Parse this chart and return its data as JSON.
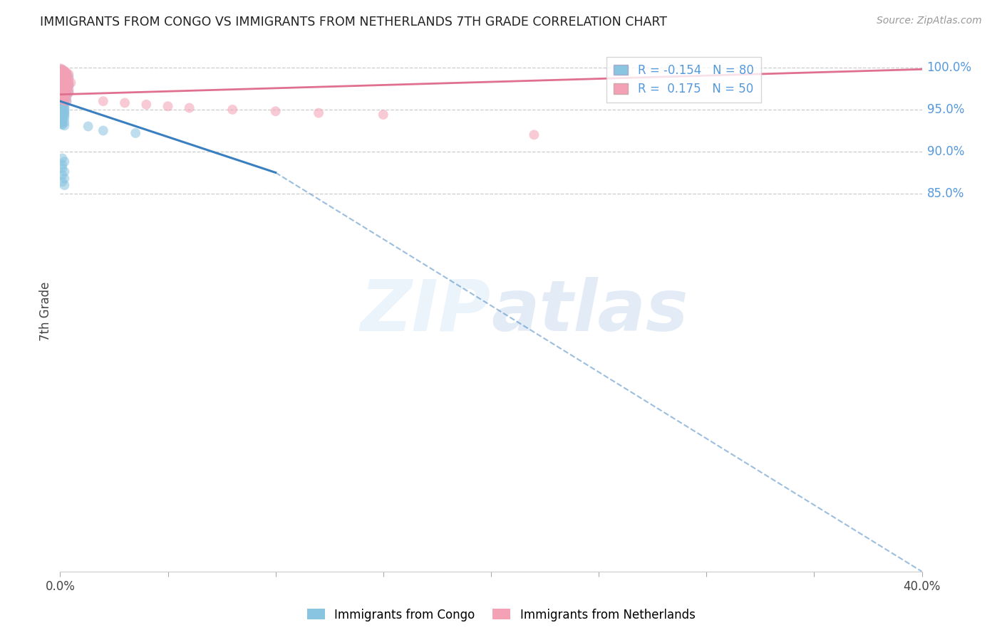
{
  "title": "IMMIGRANTS FROM CONGO VS IMMIGRANTS FROM NETHERLANDS 7TH GRADE CORRELATION CHART",
  "source": "Source: ZipAtlas.com",
  "ylabel": "7th Grade",
  "legend_label1": "Immigrants from Congo",
  "legend_label2": "Immigrants from Netherlands",
  "R1": -0.154,
  "N1": 80,
  "R2": 0.175,
  "N2": 50,
  "color_blue": "#89c4e1",
  "color_pink": "#f4a0b5",
  "color_line_blue": "#3a7fbf",
  "color_line_pink": "#e07090",
  "color_right_labels": "#5599dd",
  "color_title": "#222222",
  "watermark_zip": "ZIP",
  "watermark_atlas": "atlas",
  "xlim": [
    0.0,
    0.4
  ],
  "ylim": [
    0.4,
    1.02
  ],
  "yticks_right": [
    1.0,
    0.95,
    0.9,
    0.85
  ],
  "xtick_positions": [
    0.0,
    0.05,
    0.1,
    0.15,
    0.2,
    0.25,
    0.3,
    0.35,
    0.4
  ],
  "blue_x": [
    0.0,
    0.001,
    0.001,
    0.002,
    0.002,
    0.002,
    0.003,
    0.003,
    0.003,
    0.004,
    0.0,
    0.001,
    0.001,
    0.001,
    0.002,
    0.002,
    0.003,
    0.003,
    0.004,
    0.004,
    0.0,
    0.001,
    0.001,
    0.002,
    0.002,
    0.003,
    0.003,
    0.004,
    0.0,
    0.001,
    0.001,
    0.002,
    0.002,
    0.003,
    0.0,
    0.001,
    0.001,
    0.002,
    0.003,
    0.0,
    0.001,
    0.002,
    0.0,
    0.001,
    0.002,
    0.0,
    0.001,
    0.002,
    0.001,
    0.002,
    0.001,
    0.002,
    0.001,
    0.002,
    0.001,
    0.002,
    0.001,
    0.001,
    0.002,
    0.001,
    0.013,
    0.02,
    0.035,
    0.0,
    0.001,
    0.001,
    0.002,
    0.0,
    0.001,
    0.001,
    0.002,
    0.001,
    0.002,
    0.001,
    0.001,
    0.002,
    0.001,
    0.002,
    0.001,
    0.002
  ],
  "blue_y": [
    0.998,
    0.997,
    0.996,
    0.995,
    0.994,
    0.993,
    0.992,
    0.991,
    0.99,
    0.989,
    0.988,
    0.987,
    0.986,
    0.985,
    0.984,
    0.983,
    0.982,
    0.981,
    0.98,
    0.979,
    0.978,
    0.977,
    0.976,
    0.975,
    0.974,
    0.973,
    0.972,
    0.971,
    0.97,
    0.969,
    0.968,
    0.967,
    0.966,
    0.965,
    0.964,
    0.963,
    0.962,
    0.961,
    0.96,
    0.959,
    0.958,
    0.957,
    0.956,
    0.955,
    0.954,
    0.953,
    0.952,
    0.951,
    0.95,
    0.949,
    0.948,
    0.947,
    0.946,
    0.945,
    0.944,
    0.943,
    0.942,
    0.941,
    0.94,
    0.939,
    0.93,
    0.925,
    0.922,
    0.938,
    0.937,
    0.936,
    0.935,
    0.934,
    0.933,
    0.932,
    0.931,
    0.892,
    0.888,
    0.884,
    0.88,
    0.876,
    0.872,
    0.868,
    0.864,
    0.86
  ],
  "pink_x": [
    0.0,
    0.001,
    0.001,
    0.002,
    0.002,
    0.003,
    0.003,
    0.004,
    0.0,
    0.001,
    0.002,
    0.003,
    0.004,
    0.001,
    0.002,
    0.003,
    0.004,
    0.005,
    0.001,
    0.002,
    0.003,
    0.004,
    0.001,
    0.002,
    0.003,
    0.004,
    0.001,
    0.002,
    0.003,
    0.004,
    0.001,
    0.002,
    0.003,
    0.001,
    0.002,
    0.001,
    0.002,
    0.001,
    0.02,
    0.03,
    0.04,
    0.05,
    0.06,
    0.08,
    0.1,
    0.12,
    0.15,
    0.22,
    0.002,
    0.003
  ],
  "pink_y": [
    0.999,
    0.998,
    0.997,
    0.996,
    0.995,
    0.994,
    0.993,
    0.992,
    0.991,
    0.99,
    0.989,
    0.988,
    0.987,
    0.986,
    0.985,
    0.984,
    0.983,
    0.982,
    0.981,
    0.98,
    0.979,
    0.978,
    0.977,
    0.976,
    0.975,
    0.974,
    0.973,
    0.972,
    0.971,
    0.97,
    0.969,
    0.968,
    0.967,
    0.966,
    0.965,
    0.964,
    0.963,
    0.962,
    0.96,
    0.958,
    0.956,
    0.954,
    0.952,
    0.95,
    0.948,
    0.946,
    0.944,
    0.92,
    0.961,
    0.96
  ],
  "blue_trend_x0": 0.0,
  "blue_trend_y0": 0.96,
  "blue_trend_x1": 0.1,
  "blue_trend_y1": 0.875,
  "dash_trend_x0": 0.1,
  "dash_trend_y0": 0.875,
  "dash_trend_x1": 0.4,
  "dash_trend_y1": 0.4,
  "pink_trend_x0": 0.0,
  "pink_trend_y0": 0.968,
  "pink_trend_x1": 0.4,
  "pink_trend_y1": 0.998
}
